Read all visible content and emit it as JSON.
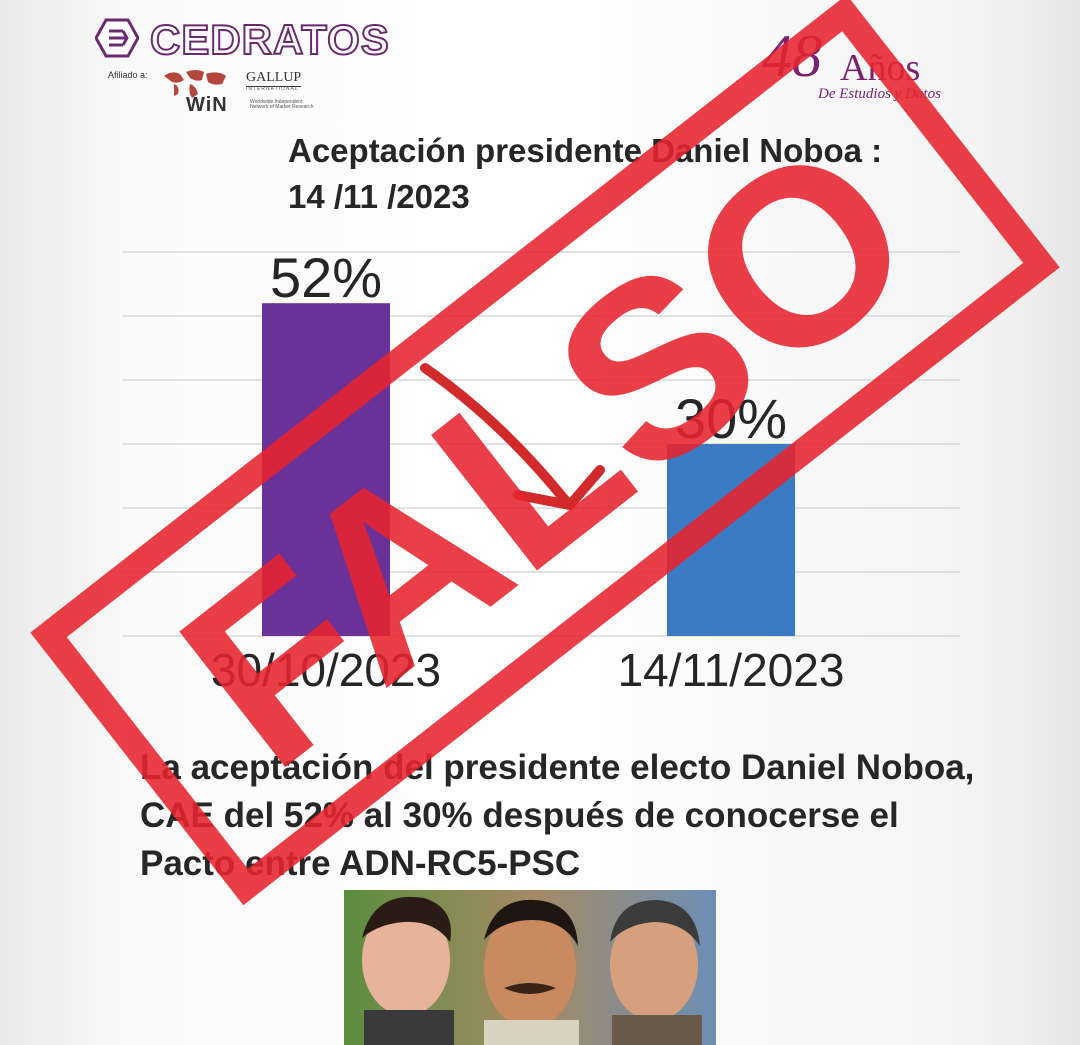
{
  "header": {
    "brand": "CEDRATOS",
    "affiliate_label": "Afiliado a:",
    "network": "WiN",
    "network_sub": "Worldwide Independent Network of Market Research",
    "partner": "GALLUP",
    "partner_sub": "INTERNATIONAL",
    "anniversary_number": "48",
    "anniversary_word": "Años",
    "anniversary_sub": "De Estudios y Datos"
  },
  "chart_data": {
    "type": "bar",
    "title": "Aceptación presidente Daniel Noboa : 14 /11 /2023",
    "categories": [
      "30/10/2023",
      "14/11/2023"
    ],
    "values": [
      52,
      30
    ],
    "value_labels": [
      "52%",
      "30%"
    ],
    "ylim": [
      0,
      60
    ],
    "grid": true,
    "colors": [
      "#6a3198",
      "#3a7bc3"
    ]
  },
  "caption": "La aceptación del presidente electo Daniel Noboa, CAE del 52% al 30% después de conocerse el Pacto entre ADN-RC5-PSC",
  "stamp": {
    "text": "FALSO",
    "color": "#e8242f"
  }
}
